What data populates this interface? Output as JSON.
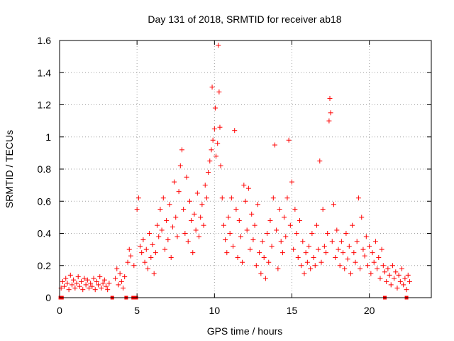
{
  "chart_data": {
    "type": "scatter",
    "title": "Day 131 of 2018, SRMTID for receiver ab18",
    "xlabel": "GPS time / hours",
    "ylabel": "SRMTID / TECUs",
    "xlim": [
      0,
      24
    ],
    "ylim": [
      0,
      1.6
    ],
    "xticks": [
      0,
      5,
      10,
      15,
      20
    ],
    "yticks": [
      0,
      0.2,
      0.4,
      0.6,
      0.8,
      1.0,
      1.2,
      1.4,
      1.6
    ],
    "xtick_labels": [
      "0",
      "5",
      "10",
      "15",
      "20"
    ],
    "ytick_labels": [
      "0",
      "0.2",
      "0.4",
      "0.6",
      "0.8",
      "1",
      "1.2",
      "1.4",
      "1.6"
    ],
    "grid": true,
    "marker": "+",
    "color": "#ff0000",
    "series": [
      {
        "name": "SRMTID",
        "points": [
          [
            0.1,
            0.06
          ],
          [
            0.2,
            0.1
          ],
          [
            0.3,
            0.07
          ],
          [
            0.4,
            0.12
          ],
          [
            0.5,
            0.09
          ],
          [
            0.6,
            0.05
          ],
          [
            0.7,
            0.14
          ],
          [
            0.8,
            0.08
          ],
          [
            0.9,
            0.11
          ],
          [
            1.0,
            0.06
          ],
          [
            1.1,
            0.09
          ],
          [
            1.2,
            0.13
          ],
          [
            1.3,
            0.07
          ],
          [
            1.4,
            0.1
          ],
          [
            1.5,
            0.05
          ],
          [
            1.6,
            0.12
          ],
          [
            1.7,
            0.08
          ],
          [
            1.8,
            0.11
          ],
          [
            1.9,
            0.06
          ],
          [
            2.0,
            0.09
          ],
          [
            2.1,
            0.07
          ],
          [
            2.2,
            0.12
          ],
          [
            2.3,
            0.05
          ],
          [
            2.4,
            0.1
          ],
          [
            2.5,
            0.08
          ],
          [
            2.6,
            0.13
          ],
          [
            2.7,
            0.06
          ],
          [
            2.8,
            0.09
          ],
          [
            2.9,
            0.11
          ],
          [
            3.0,
            0.07
          ],
          [
            3.1,
            0.05
          ],
          [
            3.2,
            0.09
          ],
          [
            3.6,
            0.12
          ],
          [
            3.7,
            0.18
          ],
          [
            3.8,
            0.08
          ],
          [
            3.9,
            0.15
          ],
          [
            4.0,
            0.1
          ],
          [
            4.1,
            0.06
          ],
          [
            4.2,
            0.13
          ],
          [
            4.4,
            0.22
          ],
          [
            4.5,
            0.3
          ],
          [
            4.6,
            0.26
          ],
          [
            4.8,
            0.2
          ],
          [
            5.0,
            0.55
          ],
          [
            5.1,
            0.62
          ],
          [
            5.2,
            0.32
          ],
          [
            5.3,
            0.28
          ],
          [
            5.4,
            0.36
          ],
          [
            5.5,
            0.22
          ],
          [
            5.6,
            0.3
          ],
          [
            5.7,
            0.18
          ],
          [
            5.8,
            0.4
          ],
          [
            5.9,
            0.25
          ],
          [
            6.0,
            0.33
          ],
          [
            6.1,
            0.15
          ],
          [
            6.2,
            0.28
          ],
          [
            6.3,
            0.45
          ],
          [
            6.4,
            0.38
          ],
          [
            6.5,
            0.55
          ],
          [
            6.6,
            0.42
          ],
          [
            6.7,
            0.62
          ],
          [
            6.8,
            0.3
          ],
          [
            6.9,
            0.48
          ],
          [
            7.0,
            0.36
          ],
          [
            7.1,
            0.58
          ],
          [
            7.2,
            0.25
          ],
          [
            7.3,
            0.44
          ],
          [
            7.4,
            0.72
          ],
          [
            7.5,
            0.5
          ],
          [
            7.6,
            0.38
          ],
          [
            7.7,
            0.66
          ],
          [
            7.8,
            0.82
          ],
          [
            7.9,
            0.92
          ],
          [
            8.0,
            0.55
          ],
          [
            8.1,
            0.4
          ],
          [
            8.2,
            0.75
          ],
          [
            8.3,
            0.35
          ],
          [
            8.4,
            0.6
          ],
          [
            8.5,
            0.48
          ],
          [
            8.6,
            0.28
          ],
          [
            8.7,
            0.52
          ],
          [
            8.8,
            0.42
          ],
          [
            8.9,
            0.65
          ],
          [
            9.0,
            0.38
          ],
          [
            9.1,
            0.5
          ],
          [
            9.2,
            0.58
          ],
          [
            9.3,
            0.45
          ],
          [
            9.4,
            0.7
          ],
          [
            9.5,
            0.62
          ],
          [
            9.6,
            0.78
          ],
          [
            9.7,
            0.85
          ],
          [
            9.8,
            0.92
          ],
          [
            9.85,
            1.31
          ],
          [
            9.9,
            0.98
          ],
          [
            10.0,
            1.05
          ],
          [
            10.05,
            1.18
          ],
          [
            10.1,
            0.88
          ],
          [
            10.2,
            0.96
          ],
          [
            10.25,
            1.57
          ],
          [
            10.3,
            1.28
          ],
          [
            10.35,
            1.06
          ],
          [
            10.4,
            0.82
          ],
          [
            10.5,
            0.62
          ],
          [
            10.6,
            0.45
          ],
          [
            10.7,
            0.36
          ],
          [
            10.8,
            0.28
          ],
          [
            10.9,
            0.5
          ],
          [
            11.0,
            0.4
          ],
          [
            11.1,
            0.62
          ],
          [
            11.2,
            0.32
          ],
          [
            11.3,
            1.04
          ],
          [
            11.4,
            0.55
          ],
          [
            11.5,
            0.25
          ],
          [
            11.6,
            0.48
          ],
          [
            11.7,
            0.38
          ],
          [
            11.8,
            0.22
          ],
          [
            11.9,
            0.7
          ],
          [
            12.0,
            0.6
          ],
          [
            12.1,
            0.42
          ],
          [
            12.2,
            0.68
          ],
          [
            12.3,
            0.3
          ],
          [
            12.4,
            0.52
          ],
          [
            12.5,
            0.36
          ],
          [
            12.6,
            0.45
          ],
          [
            12.7,
            0.2
          ],
          [
            12.8,
            0.58
          ],
          [
            12.9,
            0.28
          ],
          [
            13.0,
            0.15
          ],
          [
            13.1,
            0.35
          ],
          [
            13.2,
            0.25
          ],
          [
            13.3,
            0.12
          ],
          [
            13.4,
            0.4
          ],
          [
            13.5,
            0.22
          ],
          [
            13.6,
            0.48
          ],
          [
            13.7,
            0.32
          ],
          [
            13.8,
            0.62
          ],
          [
            13.9,
            0.95
          ],
          [
            14.0,
            0.42
          ],
          [
            14.1,
            0.18
          ],
          [
            14.2,
            0.55
          ],
          [
            14.3,
            0.35
          ],
          [
            14.4,
            0.28
          ],
          [
            14.5,
            0.5
          ],
          [
            14.6,
            0.38
          ],
          [
            14.7,
            0.62
          ],
          [
            14.8,
            0.98
          ],
          [
            14.9,
            0.45
          ],
          [
            15.0,
            0.72
          ],
          [
            15.1,
            0.3
          ],
          [
            15.2,
            0.55
          ],
          [
            15.3,
            0.4
          ],
          [
            15.4,
            0.25
          ],
          [
            15.5,
            0.48
          ],
          [
            15.6,
            0.2
          ],
          [
            15.7,
            0.35
          ],
          [
            15.8,
            0.15
          ],
          [
            15.9,
            0.28
          ],
          [
            16.0,
            0.22
          ],
          [
            16.1,
            0.32
          ],
          [
            16.2,
            0.18
          ],
          [
            16.3,
            0.4
          ],
          [
            16.4,
            0.25
          ],
          [
            16.5,
            0.2
          ],
          [
            16.6,
            0.45
          ],
          [
            16.7,
            0.3
          ],
          [
            16.8,
            0.85
          ],
          [
            16.9,
            0.22
          ],
          [
            17.0,
            0.55
          ],
          [
            17.1,
            0.32
          ],
          [
            17.2,
            0.28
          ],
          [
            17.3,
            0.4
          ],
          [
            17.4,
            1.1
          ],
          [
            17.45,
            1.24
          ],
          [
            17.5,
            1.15
          ],
          [
            17.6,
            0.35
          ],
          [
            17.7,
            0.58
          ],
          [
            17.8,
            0.25
          ],
          [
            17.9,
            0.42
          ],
          [
            18.0,
            0.3
          ],
          [
            18.1,
            0.2
          ],
          [
            18.2,
            0.35
          ],
          [
            18.3,
            0.28
          ],
          [
            18.4,
            0.18
          ],
          [
            18.5,
            0.4
          ],
          [
            18.6,
            0.24
          ],
          [
            18.7,
            0.32
          ],
          [
            18.8,
            0.15
          ],
          [
            18.9,
            0.45
          ],
          [
            19.0,
            0.28
          ],
          [
            19.1,
            0.22
          ],
          [
            19.2,
            0.35
          ],
          [
            19.3,
            0.62
          ],
          [
            19.4,
            0.18
          ],
          [
            19.5,
            0.5
          ],
          [
            19.6,
            0.3
          ],
          [
            19.7,
            0.26
          ],
          [
            19.8,
            0.38
          ],
          [
            19.9,
            0.2
          ],
          [
            20.0,
            0.32
          ],
          [
            20.1,
            0.15
          ],
          [
            20.2,
            0.28
          ],
          [
            20.3,
            0.22
          ],
          [
            20.4,
            0.35
          ],
          [
            20.5,
            0.18
          ],
          [
            20.6,
            0.25
          ],
          [
            20.7,
            0.12
          ],
          [
            20.8,
            0.3
          ],
          [
            20.9,
            0.2
          ],
          [
            21.0,
            0.16
          ],
          [
            21.1,
            0.1
          ],
          [
            21.2,
            0.18
          ],
          [
            21.3,
            0.14
          ],
          [
            21.4,
            0.08
          ],
          [
            21.5,
            0.2
          ],
          [
            21.6,
            0.12
          ],
          [
            21.7,
            0.16
          ],
          [
            21.8,
            0.06
          ],
          [
            21.9,
            0.14
          ],
          [
            22.0,
            0.1
          ],
          [
            22.1,
            0.18
          ],
          [
            22.2,
            0.08
          ],
          [
            22.3,
            0.12
          ],
          [
            22.4,
            0.05
          ],
          [
            22.5,
            0.14
          ],
          [
            22.6,
            0.1
          ]
        ]
      }
    ],
    "baseline_markers": [
      0.05,
      0.15,
      3.4,
      4.3,
      4.75,
      4.95,
      21.0,
      22.4
    ]
  }
}
